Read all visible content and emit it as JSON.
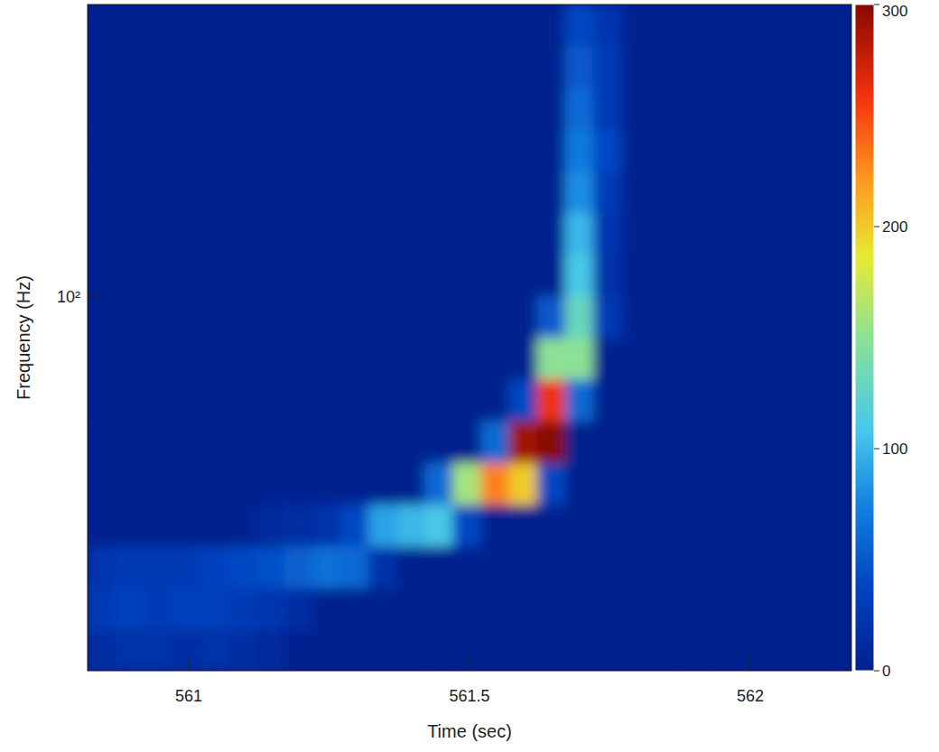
{
  "chart_data": {
    "type": "heatmap",
    "x_label": "Time (sec)",
    "y_label": "Frequency (Hz)",
    "log": "y",
    "xlim": [
      560.82,
      562.18
    ],
    "xticks": [
      561,
      561.5,
      562
    ],
    "ylim": [
      20,
      350
    ],
    "yticks": [
      {
        "value": 100,
        "label": "10²"
      }
    ],
    "x_edges": [
      560.82,
      560.87,
      560.92,
      560.97,
      561.02,
      561.07,
      561.12,
      561.17,
      561.22,
      561.27,
      561.32,
      561.37,
      561.42,
      561.47,
      561.52,
      561.57,
      561.62,
      561.67,
      561.72,
      561.77,
      561.82,
      561.87,
      561.92,
      561.97,
      562.02,
      562.07,
      562.12,
      562.17
    ],
    "y_edges": [
      20,
      23.9,
      28.6,
      34.2,
      40.9,
      48.9,
      58.5,
      70,
      83.7,
      100.1,
      119.7,
      143.2,
      171.3,
      204.8,
      245,
      293,
      350
    ],
    "z": [
      [
        15,
        20,
        20,
        15,
        20,
        15,
        10,
        0,
        0,
        0,
        0,
        0,
        0,
        0,
        0,
        0,
        0,
        0,
        0,
        0,
        0,
        0,
        0,
        0,
        0,
        0,
        0
      ],
      [
        30,
        35,
        30,
        35,
        35,
        30,
        25,
        15,
        0,
        0,
        0,
        0,
        0,
        0,
        0,
        0,
        0,
        0,
        0,
        0,
        0,
        0,
        0,
        0,
        0,
        0,
        0
      ],
      [
        25,
        30,
        30,
        30,
        35,
        40,
        45,
        55,
        65,
        60,
        20,
        0,
        0,
        0,
        0,
        0,
        0,
        0,
        0,
        0,
        0,
        0,
        0,
        0,
        0,
        0,
        0
      ],
      [
        0,
        0,
        0,
        0,
        0,
        0,
        10,
        15,
        20,
        40,
        90,
        100,
        110,
        40,
        0,
        0,
        0,
        0,
        0,
        0,
        0,
        0,
        0,
        0,
        0,
        0,
        0
      ],
      [
        0,
        0,
        0,
        0,
        0,
        0,
        0,
        0,
        0,
        0,
        0,
        0,
        60,
        160,
        230,
        200,
        40,
        0,
        0,
        0,
        0,
        0,
        0,
        0,
        0,
        0,
        0
      ],
      [
        0,
        0,
        0,
        0,
        0,
        0,
        0,
        0,
        0,
        0,
        0,
        0,
        0,
        0,
        60,
        290,
        300,
        0,
        0,
        0,
        0,
        0,
        0,
        0,
        0,
        0,
        0
      ],
      [
        0,
        0,
        0,
        0,
        0,
        0,
        0,
        0,
        0,
        0,
        0,
        0,
        0,
        0,
        0,
        40,
        260,
        60,
        0,
        0,
        0,
        0,
        0,
        0,
        0,
        0,
        0
      ],
      [
        0,
        0,
        0,
        0,
        0,
        0,
        0,
        0,
        0,
        0,
        0,
        0,
        0,
        0,
        0,
        0,
        150,
        150,
        0,
        0,
        0,
        0,
        0,
        0,
        0,
        0,
        0
      ],
      [
        0,
        0,
        0,
        0,
        0,
        0,
        0,
        0,
        0,
        0,
        0,
        0,
        0,
        0,
        0,
        0,
        50,
        130,
        30,
        0,
        0,
        0,
        0,
        0,
        0,
        0,
        0
      ],
      [
        0,
        0,
        0,
        0,
        0,
        0,
        0,
        0,
        0,
        0,
        0,
        0,
        0,
        0,
        0,
        0,
        0,
        110,
        20,
        0,
        0,
        0,
        0,
        0,
        0,
        0,
        0
      ],
      [
        0,
        0,
        0,
        0,
        0,
        0,
        0,
        0,
        0,
        0,
        0,
        0,
        0,
        0,
        0,
        0,
        0,
        100,
        25,
        0,
        0,
        0,
        0,
        0,
        0,
        0,
        0
      ],
      [
        0,
        0,
        0,
        0,
        0,
        0,
        0,
        0,
        0,
        0,
        0,
        0,
        0,
        0,
        0,
        0,
        0,
        80,
        30,
        0,
        0,
        0,
        0,
        0,
        0,
        0,
        0
      ],
      [
        0,
        0,
        0,
        0,
        0,
        0,
        0,
        0,
        0,
        0,
        0,
        0,
        0,
        0,
        0,
        0,
        0,
        70,
        40,
        0,
        0,
        0,
        0,
        0,
        0,
        0,
        0
      ],
      [
        0,
        0,
        0,
        0,
        0,
        0,
        0,
        0,
        0,
        0,
        0,
        0,
        0,
        0,
        0,
        0,
        0,
        60,
        30,
        0,
        0,
        0,
        0,
        0,
        0,
        0,
        0
      ],
      [
        0,
        0,
        0,
        0,
        0,
        0,
        0,
        0,
        0,
        0,
        0,
        0,
        0,
        0,
        0,
        0,
        0,
        50,
        30,
        0,
        0,
        0,
        0,
        0,
        0,
        0,
        0
      ],
      [
        0,
        0,
        0,
        0,
        0,
        0,
        0,
        0,
        0,
        0,
        0,
        0,
        0,
        0,
        0,
        0,
        0,
        40,
        25,
        0,
        0,
        0,
        0,
        0,
        0,
        0,
        0
      ]
    ],
    "colorbar": {
      "range": [
        0,
        300
      ],
      "ticks": [
        0,
        100,
        200,
        300
      ]
    }
  }
}
